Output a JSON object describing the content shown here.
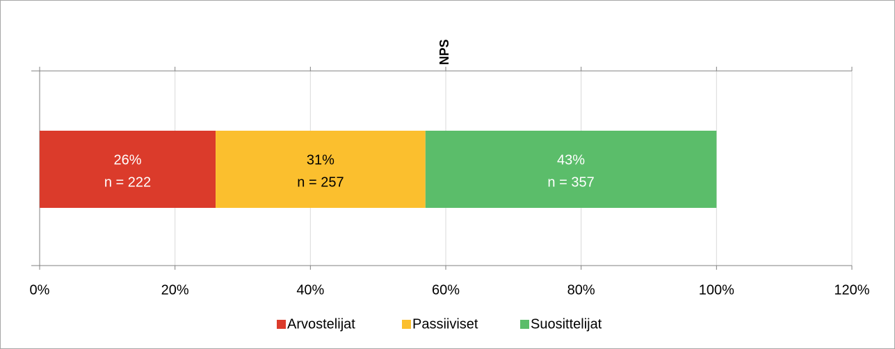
{
  "chart_data": {
    "type": "stacked_bar_horizontal",
    "title": "NPS",
    "series": [
      {
        "name": "Arvostelijat",
        "color": "#db3b2b",
        "label_color": "#ffffff",
        "values": [
          26
        ],
        "value_labels": [
          "26%"
        ],
        "n_labels": [
          "n = 222"
        ]
      },
      {
        "name": "Passiiviset",
        "color": "#fbbf2e",
        "label_color": "#000000",
        "values": [
          31
        ],
        "value_labels": [
          "31%"
        ],
        "n_labels": [
          "n = 257"
        ]
      },
      {
        "name": "Suosittelijat",
        "color": "#5bbd6a",
        "label_color": "#ffffff",
        "values": [
          43
        ],
        "value_labels": [
          "43%"
        ],
        "n_labels": [
          "n = 357"
        ]
      }
    ],
    "xlim": [
      0,
      120
    ],
    "xticks": [
      {
        "value": 0,
        "label": "0%"
      },
      {
        "value": 20,
        "label": "20%"
      },
      {
        "value": 40,
        "label": "40%"
      },
      {
        "value": 60,
        "label": "60%"
      },
      {
        "value": 80,
        "label": "80%"
      },
      {
        "value": 100,
        "label": "100%"
      },
      {
        "value": 120,
        "label": "120%"
      }
    ],
    "grid": true,
    "legend": "bottom"
  }
}
